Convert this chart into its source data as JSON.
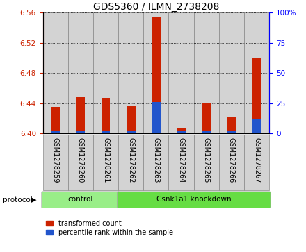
{
  "title": "GDS5360 / ILMN_2738208",
  "samples": [
    "GSM1278259",
    "GSM1278260",
    "GSM1278261",
    "GSM1278262",
    "GSM1278263",
    "GSM1278264",
    "GSM1278265",
    "GSM1278266",
    "GSM1278267"
  ],
  "red_values": [
    6.435,
    6.448,
    6.447,
    6.436,
    6.555,
    6.408,
    6.44,
    6.422,
    6.5
  ],
  "blue_values": [
    2.0,
    2.5,
    2.5,
    2.0,
    26.0,
    2.0,
    2.5,
    2.0,
    12.0
  ],
  "ylim_left": [
    6.4,
    6.56
  ],
  "ylim_right": [
    0,
    100
  ],
  "yticks_left": [
    6.4,
    6.44,
    6.48,
    6.52,
    6.56
  ],
  "yticks_right": [
    0,
    25,
    50,
    75,
    100
  ],
  "protocol_groups": [
    {
      "label": "control",
      "start": 0,
      "end": 2,
      "color": "#90ee90"
    },
    {
      "label": "Csnk1a1 knockdown",
      "start": 3,
      "end": 8,
      "color": "#66dd66"
    }
  ],
  "protocol_label": "protocol",
  "legend_items": [
    {
      "label": "transformed count",
      "color": "#cc2200"
    },
    {
      "label": "percentile rank within the sample",
      "color": "#2255cc"
    }
  ],
  "red_color": "#cc2200",
  "blue_color": "#2255cc",
  "bg_color": "#d3d3d3",
  "grid_color": "#000000",
  "bar_width": 0.35
}
